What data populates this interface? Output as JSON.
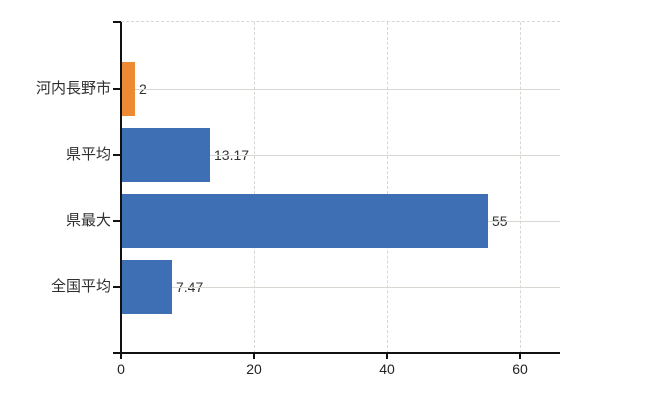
{
  "chart_data": {
    "type": "bar",
    "orientation": "horizontal",
    "categories": [
      "河内長野市",
      "県平均",
      "県最大",
      "全国平均"
    ],
    "values": [
      2,
      13.17,
      55,
      7.47
    ],
    "value_labels": [
      "2",
      "13.17",
      "55",
      "7.47"
    ],
    "series": [
      {
        "name": "value",
        "values": [
          2,
          13.17,
          55,
          7.47
        ]
      }
    ],
    "bar_colors": [
      "#ee8a33",
      "#3e6eb4",
      "#3e6eb4",
      "#3e6eb4"
    ],
    "x_ticks": [
      0,
      20,
      40,
      60
    ],
    "x_tick_labels": [
      "0",
      "20",
      "40",
      "60"
    ],
    "xlim": [
      0,
      66
    ],
    "grid": true,
    "legend_visible": false,
    "title": ""
  },
  "colors": {
    "highlight_bar": "#ee8a33",
    "default_bar": "#3e6eb4",
    "gridline": "#d4dad2",
    "axis": "#111111",
    "text": "#2f2f2f",
    "background": "#ffffff"
  }
}
